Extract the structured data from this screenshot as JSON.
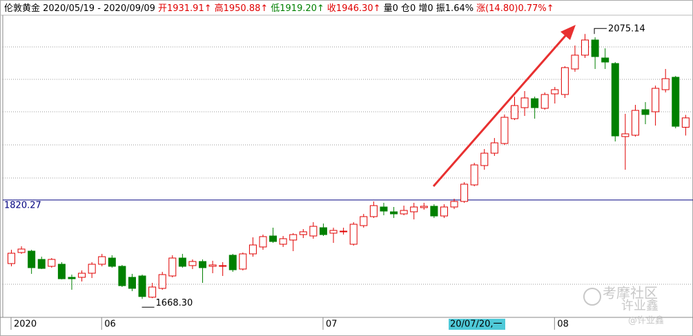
{
  "header": [
    {
      "text": "伦敦黄金  2020/05/19 - 2020/09/09",
      "color": "#000000"
    },
    {
      "text": "开1931.91↑",
      "color": "#e00000"
    },
    {
      "text": "高1950.88↑",
      "color": "#e00000"
    },
    {
      "text": "低1919.20↑",
      "color": "#008000"
    },
    {
      "text": "收1946.30↑",
      "color": "#e00000"
    },
    {
      "text": "量0  仓0  增0  振1.64%",
      "color": "#000000"
    },
    {
      "text": "涨(14.80)0.77%↑",
      "color": "#e00000"
    }
  ],
  "watermark": [
    "考摩社区",
    "许业鑫",
    "@许业鑫"
  ],
  "chart_data": {
    "type": "candlestick",
    "categories": [
      "2020",
      null,
      null,
      null,
      null,
      null,
      null,
      null,
      null,
      "06",
      null,
      null,
      null,
      null,
      null,
      null,
      null,
      null,
      null,
      null,
      null,
      null,
      null,
      null,
      null,
      null,
      null,
      null,
      null,
      null,
      null,
      "07",
      null,
      null,
      null,
      null,
      null,
      null,
      null,
      null,
      null,
      null,
      null,
      null,
      null,
      null,
      null,
      null,
      null,
      null,
      null,
      null,
      null,
      null,
      "08",
      null,
      null,
      null,
      null,
      null,
      null,
      null,
      null,
      null,
      null,
      null,
      null,
      null
    ],
    "open": [
      1722.6,
      1739.6,
      1741.7,
      1729.0,
      1718.4,
      1721.6,
      1701.5,
      1701.5,
      1707.8,
      1721.6,
      1731.1,
      1718.4,
      1701.5,
      1703.6,
      1671.0,
      1684.5,
      1703.6,
      1731.1,
      1719.5,
      1725.8,
      1718.4,
      1718.4,
      1735.4,
      1714.2,
      1737.5,
      1748.1,
      1765.0,
      1752.3,
      1758.7,
      1767.1,
      1765.0,
      1777.7,
      1769.3,
      1771.4,
      1752.3,
      1780.9,
      1794.7,
      1809.5,
      1802.1,
      1798.9,
      1802.1,
      1808.5,
      1810.6,
      1795.7,
      1809.5,
      1818.0,
      1843.4,
      1873.1,
      1892.1,
      1907.0,
      1945.1,
      1962.0,
      1975.8,
      1961.0,
      1983.2,
      1982.2,
      2021.4,
      2042.6,
      2065.9,
      2038.3,
      2029.8,
      1917.6,
      1919.7,
      1958.9,
      1955.7,
      1989.6,
      2008.7,
      1931.91
    ],
    "high": [
      1743.8,
      1749.1,
      1743.8,
      1733.2,
      1731.1,
      1724.8,
      1705.7,
      1712.1,
      1724.8,
      1737.5,
      1735.4,
      1720.5,
      1706.8,
      1705.7,
      1693.0,
      1709.9,
      1735.4,
      1737.5,
      1729.0,
      1729.0,
      1726.9,
      1724.8,
      1737.5,
      1739.6,
      1762.9,
      1767.1,
      1777.7,
      1765.0,
      1769.3,
      1775.6,
      1786.2,
      1784.1,
      1777.7,
      1777.7,
      1786.2,
      1798.9,
      1818.0,
      1815.9,
      1809.5,
      1811.6,
      1815.9,
      1815.9,
      1813.7,
      1813.7,
      1822.2,
      1847.6,
      1877.3,
      1898.5,
      1915.4,
      1951.5,
      1979.0,
      1987.5,
      1979.0,
      1985.4,
      1993.8,
      2025.6,
      2057.4,
      2075.14,
      2070.0,
      2053.1,
      2032.0,
      1952.5,
      1966.3,
      1970.5,
      1995.9,
      2021.4,
      2010.8,
      1950.88
    ],
    "low": [
      1718.4,
      1737.5,
      1706.8,
      1714.2,
      1716.3,
      1698.3,
      1682.4,
      1695.1,
      1700.4,
      1718.4,
      1716.3,
      1686.6,
      1680.3,
      1668.3,
      1669.5,
      1682.4,
      1701.5,
      1716.3,
      1714.2,
      1693.0,
      1707.8,
      1703.6,
      1709.9,
      1712.1,
      1733.2,
      1743.8,
      1754.4,
      1748.1,
      1741.7,
      1761.8,
      1760.8,
      1765.0,
      1754.4,
      1767.1,
      1750.2,
      1777.7,
      1792.6,
      1796.8,
      1792.6,
      1796.8,
      1790.4,
      1805.3,
      1792.6,
      1792.6,
      1806.3,
      1815.9,
      1841.3,
      1866.7,
      1887.9,
      1904.8,
      1943.0,
      1949.3,
      1945.1,
      1958.9,
      1968.4,
      1976.9,
      2017.1,
      2038.3,
      2021.4,
      2021.4,
      1910.1,
      1866.7,
      1917.6,
      1936.6,
      1934.5,
      1985.4,
      1930.3,
      1919.2
    ],
    "close": [
      1738.5,
      1744.9,
      1716.3,
      1715.2,
      1729.0,
      1699.3,
      1699.3,
      1707.8,
      1721.6,
      1733.2,
      1718.4,
      1688.7,
      1684.5,
      1672.0,
      1686.6,
      1705.7,
      1731.1,
      1718.4,
      1725.8,
      1716.3,
      1720.5,
      1719.5,
      1713.1,
      1737.5,
      1751.2,
      1764.0,
      1756.5,
      1760.8,
      1767.1,
      1771.4,
      1779.8,
      1767.1,
      1773.5,
      1772.4,
      1783.0,
      1794.7,
      1811.6,
      1803.2,
      1798.9,
      1804.2,
      1809.5,
      1810.6,
      1795.7,
      1809.5,
      1818.0,
      1844.5,
      1874.1,
      1892.1,
      1908.0,
      1947.2,
      1965.2,
      1976.9,
      1962.0,
      1982.2,
      1989.6,
      2023.5,
      2042.6,
      2065.9,
      2040.4,
      2032.0,
      1918.6,
      1921.8,
      1957.8,
      1951.5,
      1991.7,
      2006.5,
      1933.4,
      1946.3
    ],
    "up_color": "#e00000",
    "down_color": "#008000",
    "ylim": [
      1640,
      2122
    ],
    "reference_line": 1820.27,
    "reference_color": "#000080",
    "high_label": {
      "value": 2075.14,
      "label": "2075.14"
    },
    "low_label": {
      "value": 1668.3,
      "label": "1668.30"
    },
    "cursor_label": "20/07/20,一"
  }
}
